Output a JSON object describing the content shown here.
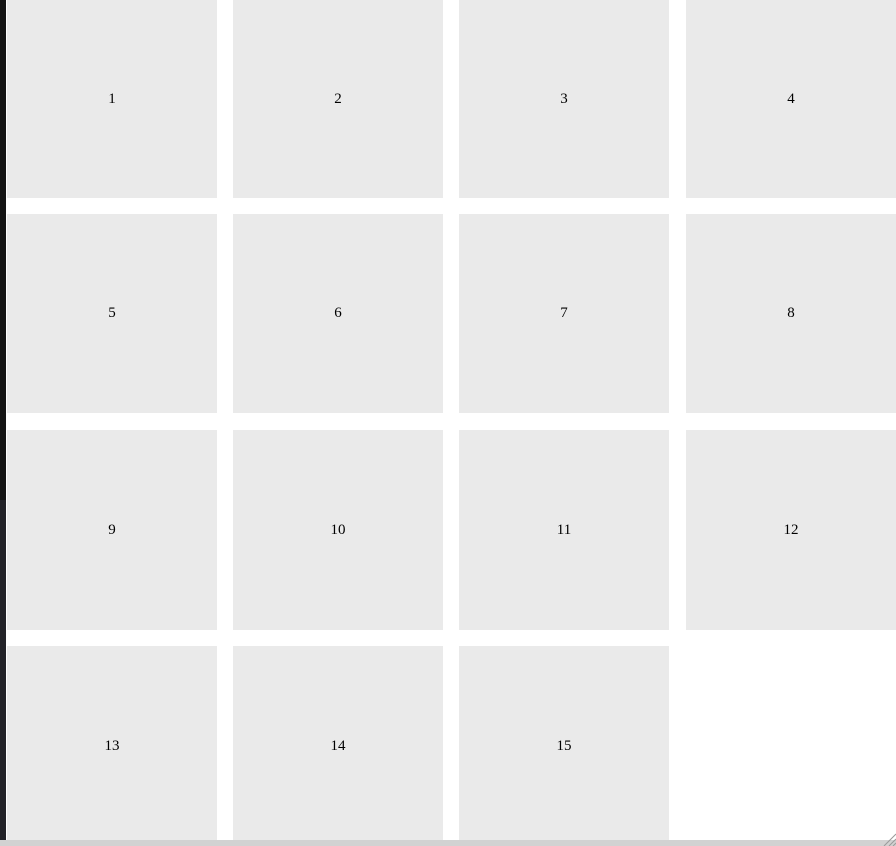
{
  "tiles": [
    {
      "label": "1"
    },
    {
      "label": "2"
    },
    {
      "label": "3"
    },
    {
      "label": "4"
    },
    {
      "label": "5"
    },
    {
      "label": "6"
    },
    {
      "label": "7"
    },
    {
      "label": "8"
    },
    {
      "label": "9"
    },
    {
      "label": "10"
    },
    {
      "label": "11"
    },
    {
      "label": "12"
    },
    {
      "label": "13"
    },
    {
      "label": "14"
    },
    {
      "label": "15"
    }
  ],
  "colors": {
    "tile_background": "#eaeaea",
    "page_background": "#ffffff",
    "left_edge": "#141414",
    "scrollbar": "#d2d2d2"
  }
}
